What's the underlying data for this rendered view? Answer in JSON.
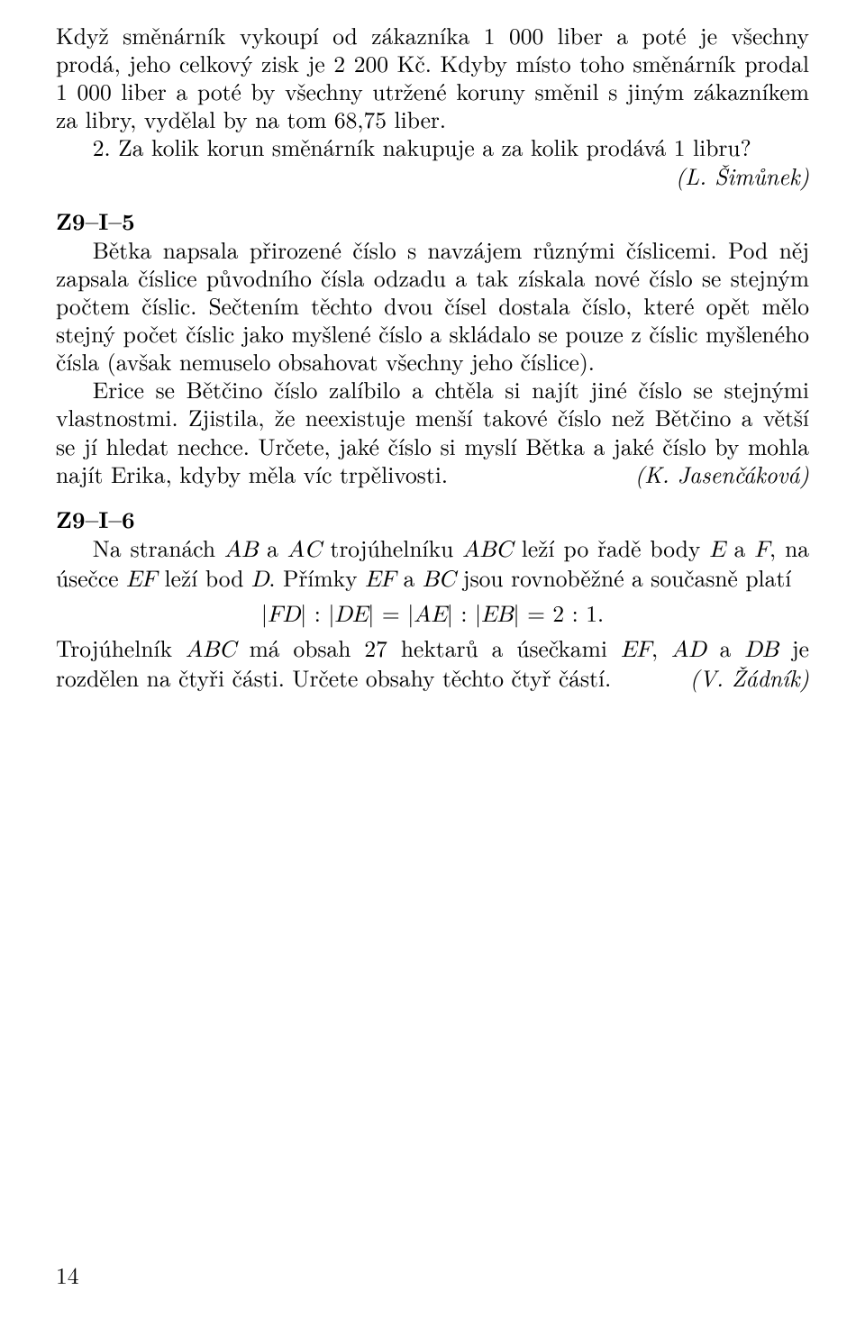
{
  "page_number": "14",
  "problems": [
    {
      "label": "",
      "author": "(L. Šimůnek)",
      "paragraphs": [
        {
          "indent": false,
          "text_html": "Když směnárník vykoupí od zákazníka 1 000 liber a poté je všechny prodá, jeho celkový zisk je 2 200 Kč. Kdyby místo toho směnárník prodal 1 000 liber a poté by všechny utržené koruny směnil s jiným zákazníkem za libry, vydělal by na tom 68,75 liber."
        },
        {
          "indent": true,
          "text_html": "2. Za kolik korun směnárník nakupuje a za kolik prodává 1 libru?"
        }
      ],
      "author_own_line": true
    },
    {
      "label": "Z9–I–5",
      "author": "(K. Jasenčáková)",
      "paragraphs": [
        {
          "indent": true,
          "text_html": "Bětka napsala přirozené číslo s navzájem různými číslicemi. Pod něj zapsala číslice původního čísla odzadu a tak získala nové číslo se stejným počtem číslic. Sečtením těchto dvou čísel dostala číslo, které opět mělo stejný počet číslic jako myšlené číslo a skládalo se pouze z číslic myšleného čísla (avšak nemuselo obsahovat všechny jeho číslice)."
        },
        {
          "indent": true,
          "text_html": "Erice se Bětčino číslo zalíbilo a chtěla si najít jiné číslo se stejnými vlastnostmi. Zjistila, že neexistuje menší takové číslo než Bětčino a větší se jí hledat nechce. Určete, jaké číslo si myslí Bětka a jaké číslo by mohla najít Erika, kdyby měla víc trpělivosti."
        }
      ],
      "author_own_line": false
    },
    {
      "label": "Z9–I–6",
      "author": "(V. Žádník)",
      "paragraphs": [
        {
          "indent": true,
          "text_html": "Na stranách <span class=\"math\">AB</span> a <span class=\"math\">AC</span> trojúhelníku <span class=\"math\">ABC</span> leží po řadě body <span class=\"math\">E</span> a <span class=\"math\">F</span>, na úsečce <span class=\"math\">EF</span> leží bod <span class=\"math\">D</span>. Přímky <span class=\"math\">EF</span> a <span class=\"math\">BC</span> jsou rovnoběžné a současně platí"
        },
        {
          "equation": true,
          "text_html": "|<span class=\"math\">FD</span>| : |<span class=\"math\">DE</span>| = |<span class=\"math\">AE</span>| : |<span class=\"math\">EB</span>| = 2 : 1."
        },
        {
          "indent": false,
          "text_html": "Trojúhelník <span class=\"math\">ABC</span> má obsah 27 hektarů a úsečkami <span class=\"math\">EF</span>, <span class=\"math\">AD</span> a <span class=\"math\">DB</span> je rozdělen na čtyři části. Určete obsahy těchto čtyř částí."
        }
      ],
      "author_own_line": false
    }
  ]
}
